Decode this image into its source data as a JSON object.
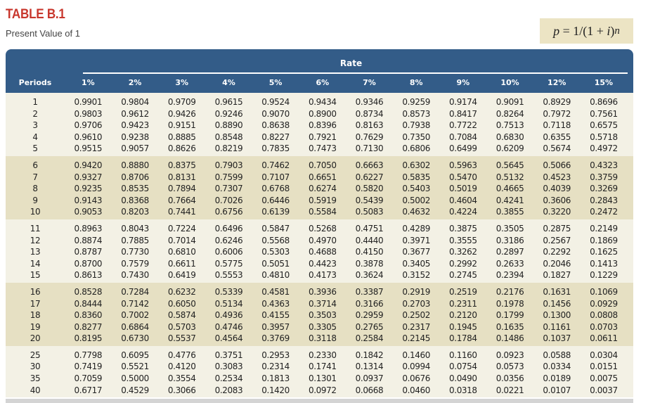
{
  "title": "TABLE B.1",
  "subtitle": "Present Value of 1",
  "formula": {
    "lhs": "p",
    "text": " = 1/(1 + ",
    "var": "i",
    "close": ")",
    "exp": "n"
  },
  "table": {
    "rate_label": "Rate",
    "periods_label": "Periods",
    "rates": [
      "1%",
      "2%",
      "3%",
      "4%",
      "5%",
      "6%",
      "7%",
      "8%",
      "9%",
      "10%",
      "12%",
      "15%"
    ],
    "rows": [
      [
        "1",
        "0.9901",
        "0.9804",
        "0.9709",
        "0.9615",
        "0.9524",
        "0.9434",
        "0.9346",
        "0.9259",
        "0.9174",
        "0.9091",
        "0.8929",
        "0.8696"
      ],
      [
        "2",
        "0.9803",
        "0.9612",
        "0.9426",
        "0.9246",
        "0.9070",
        "0.8900",
        "0.8734",
        "0.8573",
        "0.8417",
        "0.8264",
        "0.7972",
        "0.7561"
      ],
      [
        "3",
        "0.9706",
        "0.9423",
        "0.9151",
        "0.8890",
        "0.8638",
        "0.8396",
        "0.8163",
        "0.7938",
        "0.7722",
        "0.7513",
        "0.7118",
        "0.6575"
      ],
      [
        "4",
        "0.9610",
        "0.9238",
        "0.8885",
        "0.8548",
        "0.8227",
        "0.7921",
        "0.7629",
        "0.7350",
        "0.7084",
        "0.6830",
        "0.6355",
        "0.5718"
      ],
      [
        "5",
        "0.9515",
        "0.9057",
        "0.8626",
        "0.8219",
        "0.7835",
        "0.7473",
        "0.7130",
        "0.6806",
        "0.6499",
        "0.6209",
        "0.5674",
        "0.4972"
      ],
      [
        "6",
        "0.9420",
        "0.8880",
        "0.8375",
        "0.7903",
        "0.7462",
        "0.7050",
        "0.6663",
        "0.6302",
        "0.5963",
        "0.5645",
        "0.5066",
        "0.4323"
      ],
      [
        "7",
        "0.9327",
        "0.8706",
        "0.8131",
        "0.7599",
        "0.7107",
        "0.6651",
        "0.6227",
        "0.5835",
        "0.5470",
        "0.5132",
        "0.4523",
        "0.3759"
      ],
      [
        "8",
        "0.9235",
        "0.8535",
        "0.7894",
        "0.7307",
        "0.6768",
        "0.6274",
        "0.5820",
        "0.5403",
        "0.5019",
        "0.4665",
        "0.4039",
        "0.3269"
      ],
      [
        "9",
        "0.9143",
        "0.8368",
        "0.7664",
        "0.7026",
        "0.6446",
        "0.5919",
        "0.5439",
        "0.5002",
        "0.4604",
        "0.4241",
        "0.3606",
        "0.2843"
      ],
      [
        "10",
        "0.9053",
        "0.8203",
        "0.7441",
        "0.6756",
        "0.6139",
        "0.5584",
        "0.5083",
        "0.4632",
        "0.4224",
        "0.3855",
        "0.3220",
        "0.2472"
      ],
      [
        "11",
        "0.8963",
        "0.8043",
        "0.7224",
        "0.6496",
        "0.5847",
        "0.5268",
        "0.4751",
        "0.4289",
        "0.3875",
        "0.3505",
        "0.2875",
        "0.2149"
      ],
      [
        "12",
        "0.8874",
        "0.7885",
        "0.7014",
        "0.6246",
        "0.5568",
        "0.4970",
        "0.4440",
        "0.3971",
        "0.3555",
        "0.3186",
        "0.2567",
        "0.1869"
      ],
      [
        "13",
        "0.8787",
        "0.7730",
        "0.6810",
        "0.6006",
        "0.5303",
        "0.4688",
        "0.4150",
        "0.3677",
        "0.3262",
        "0.2897",
        "0.2292",
        "0.1625"
      ],
      [
        "14",
        "0.8700",
        "0.7579",
        "0.6611",
        "0.5775",
        "0.5051",
        "0.4423",
        "0.3878",
        "0.3405",
        "0.2992",
        "0.2633",
        "0.2046",
        "0.1413"
      ],
      [
        "15",
        "0.8613",
        "0.7430",
        "0.6419",
        "0.5553",
        "0.4810",
        "0.4173",
        "0.3624",
        "0.3152",
        "0.2745",
        "0.2394",
        "0.1827",
        "0.1229"
      ],
      [
        "16",
        "0.8528",
        "0.7284",
        "0.6232",
        "0.5339",
        "0.4581",
        "0.3936",
        "0.3387",
        "0.2919",
        "0.2519",
        "0.2176",
        "0.1631",
        "0.1069"
      ],
      [
        "17",
        "0.8444",
        "0.7142",
        "0.6050",
        "0.5134",
        "0.4363",
        "0.3714",
        "0.3166",
        "0.2703",
        "0.2311",
        "0.1978",
        "0.1456",
        "0.0929"
      ],
      [
        "18",
        "0.8360",
        "0.7002",
        "0.5874",
        "0.4936",
        "0.4155",
        "0.3503",
        "0.2959",
        "0.2502",
        "0.2120",
        "0.1799",
        "0.1300",
        "0.0808"
      ],
      [
        "19",
        "0.8277",
        "0.6864",
        "0.5703",
        "0.4746",
        "0.3957",
        "0.3305",
        "0.2765",
        "0.2317",
        "0.1945",
        "0.1635",
        "0.1161",
        "0.0703"
      ],
      [
        "20",
        "0.8195",
        "0.6730",
        "0.5537",
        "0.4564",
        "0.3769",
        "0.3118",
        "0.2584",
        "0.2145",
        "0.1784",
        "0.1486",
        "0.1037",
        "0.0611"
      ],
      [
        "25",
        "0.7798",
        "0.6095",
        "0.4776",
        "0.3751",
        "0.2953",
        "0.2330",
        "0.1842",
        "0.1460",
        "0.1160",
        "0.0923",
        "0.0588",
        "0.0304"
      ],
      [
        "30",
        "0.7419",
        "0.5521",
        "0.4120",
        "0.3083",
        "0.2314",
        "0.1741",
        "0.1314",
        "0.0994",
        "0.0754",
        "0.0573",
        "0.0334",
        "0.0151"
      ],
      [
        "35",
        "0.7059",
        "0.5000",
        "0.3554",
        "0.2534",
        "0.1813",
        "0.1301",
        "0.0937",
        "0.0676",
        "0.0490",
        "0.0356",
        "0.0189",
        "0.0075"
      ],
      [
        "40",
        "0.6717",
        "0.4529",
        "0.3066",
        "0.2083",
        "0.1420",
        "0.0972",
        "0.0668",
        "0.0460",
        "0.0318",
        "0.0221",
        "0.0107",
        "0.0037"
      ]
    ]
  },
  "colors": {
    "title": "#c8372d",
    "header": "#335c88",
    "band_light": "#f3f1e5",
    "band_dark": "#e6e0c3",
    "formula_bg": "#ece4c4"
  }
}
